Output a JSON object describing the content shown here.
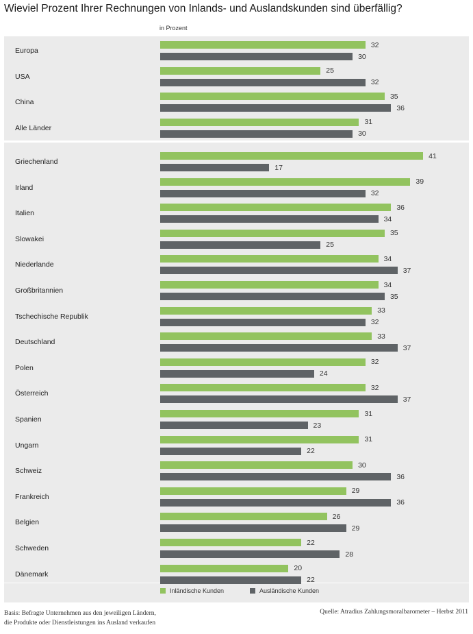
{
  "chart_data": {
    "type": "bar",
    "orientation": "horizontal",
    "title": "Wieviel Prozent Ihrer Rechnungen von Inlands- und Auslandskunden sind überfällig?",
    "unit_label": "in Prozent",
    "categories": [
      "Europa",
      "USA",
      "China",
      "Alle Länder",
      "Griechenland",
      "Irland",
      "Italien",
      "Slowakei",
      "Niederlande",
      "Großbritannien",
      "Tschechische Republik",
      "Deutschland",
      "Polen",
      "Österreich",
      "Spanien",
      "Ungarn",
      "Schweiz",
      "Frankreich",
      "Belgien",
      "Schweden",
      "Dänemark"
    ],
    "series": [
      {
        "name": "Inländische Kunden",
        "color": "#92c35f",
        "values": [
          32,
          25,
          35,
          31,
          41,
          39,
          36,
          35,
          34,
          34,
          33,
          33,
          32,
          32,
          31,
          31,
          30,
          29,
          26,
          22,
          20
        ]
      },
      {
        "name": "Ausländische Kunden",
        "color": "#5f6366",
        "values": [
          30,
          32,
          36,
          30,
          17,
          32,
          34,
          25,
          37,
          35,
          32,
          37,
          24,
          37,
          23,
          22,
          36,
          36,
          29,
          28,
          22
        ]
      }
    ],
    "xlim": [
      0,
      50
    ],
    "legend_position": "bottom-left",
    "grid": false
  },
  "footnote": {
    "line1": "Basis: Befragte Unternehmen aus den jeweiligen Ländern,",
    "line2": "die Produkte oder Dienstleistungen ins Ausland verkaufen"
  },
  "source": "Quelle: Atradius Zahlungsmoralbarometer – Herbst 2011"
}
